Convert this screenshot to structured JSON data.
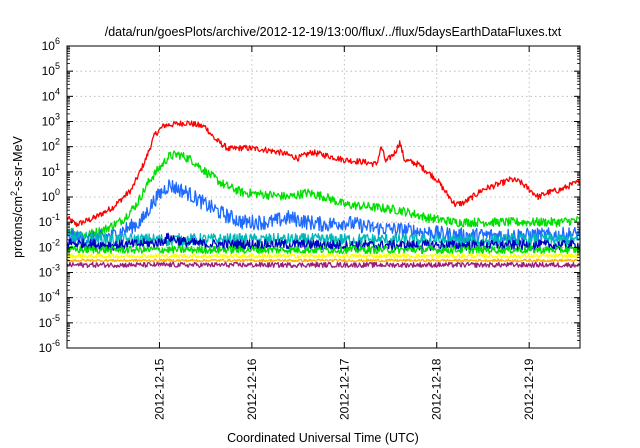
{
  "chart_data": {
    "type": "line",
    "title": "/data/run/goesPlots/archive/2012-12-19/13:00/flux/../flux/5daysEarthDataFluxes.txt",
    "xlabel": "Coordinated Universal Time (UTC)",
    "ylabel_main": "protons/cm",
    "ylabel_sup": "2",
    "ylabel_tail": "-s-sr-MeV",
    "y_scale": "log",
    "ylim_exp": [
      -6,
      6
    ],
    "y_tick_exponents": [
      -6,
      -5,
      -4,
      -3,
      -2,
      -1,
      0,
      1,
      2,
      3,
      4,
      5,
      6
    ],
    "xlim_days": [
      14.0,
      19.55
    ],
    "x_ticks": [
      {
        "label": "2012-12-15",
        "day": 15
      },
      {
        "label": "2012-12-16",
        "day": 16
      },
      {
        "label": "2012-12-17",
        "day": 17
      },
      {
        "label": "2012-12-18",
        "day": 18
      },
      {
        "label": "2012-12-19",
        "day": 19
      }
    ],
    "grid": true,
    "series": [
      {
        "color": "#ff0000",
        "noise": 0.12,
        "points": [
          [
            14.0,
            0.15
          ],
          [
            14.1,
            0.08
          ],
          [
            14.3,
            0.15
          ],
          [
            14.5,
            0.4
          ],
          [
            14.7,
            2
          ],
          [
            14.85,
            30
          ],
          [
            14.95,
            300
          ],
          [
            15.05,
            700
          ],
          [
            15.3,
            900
          ],
          [
            15.5,
            600
          ],
          [
            15.6,
            200
          ],
          [
            15.75,
            80
          ],
          [
            15.9,
            90
          ],
          [
            16.1,
            80
          ],
          [
            16.3,
            60
          ],
          [
            16.5,
            35
          ],
          [
            16.65,
            60
          ],
          [
            16.8,
            45
          ],
          [
            17.0,
            30
          ],
          [
            17.2,
            25
          ],
          [
            17.35,
            20
          ],
          [
            17.4,
            100
          ],
          [
            17.45,
            25
          ],
          [
            17.55,
            60
          ],
          [
            17.6,
            150
          ],
          [
            17.65,
            30
          ],
          [
            17.8,
            20
          ],
          [
            17.9,
            10
          ],
          [
            18.0,
            5
          ],
          [
            18.1,
            1.5
          ],
          [
            18.2,
            0.5
          ],
          [
            18.3,
            0.6
          ],
          [
            18.5,
            2
          ],
          [
            18.7,
            3.5
          ],
          [
            18.8,
            5
          ],
          [
            18.9,
            4
          ],
          [
            19.0,
            2
          ],
          [
            19.1,
            1
          ],
          [
            19.2,
            1.5
          ],
          [
            19.35,
            2
          ],
          [
            19.45,
            3
          ],
          [
            19.55,
            4
          ]
        ]
      },
      {
        "color": "#00e000",
        "noise": 0.18,
        "points": [
          [
            14.0,
            0.05
          ],
          [
            14.2,
            0.03
          ],
          [
            14.4,
            0.05
          ],
          [
            14.6,
            0.12
          ],
          [
            14.75,
            0.5
          ],
          [
            14.9,
            5
          ],
          [
            15.1,
            40
          ],
          [
            15.2,
            50
          ],
          [
            15.35,
            30
          ],
          [
            15.5,
            10
          ],
          [
            15.7,
            3
          ],
          [
            15.9,
            1.5
          ],
          [
            16.2,
            1.2
          ],
          [
            16.4,
            1
          ],
          [
            16.6,
            1.5
          ],
          [
            16.8,
            1
          ],
          [
            17.0,
            0.5
          ],
          [
            17.3,
            0.4
          ],
          [
            17.6,
            0.3
          ],
          [
            17.9,
            0.15
          ],
          [
            18.2,
            0.1
          ],
          [
            18.6,
            0.1
          ],
          [
            19.0,
            0.1
          ],
          [
            19.3,
            0.1
          ],
          [
            19.55,
            0.12
          ]
        ]
      },
      {
        "color": "#1f6bff",
        "noise": 0.3,
        "points": [
          [
            14.0,
            0.03
          ],
          [
            14.2,
            0.02
          ],
          [
            14.5,
            0.03
          ],
          [
            14.8,
            0.1
          ],
          [
            14.95,
            0.8
          ],
          [
            15.1,
            3
          ],
          [
            15.3,
            1.5
          ],
          [
            15.5,
            0.5
          ],
          [
            15.7,
            0.2
          ],
          [
            15.9,
            0.1
          ],
          [
            16.2,
            0.1
          ],
          [
            16.4,
            0.15
          ],
          [
            16.6,
            0.1
          ],
          [
            16.8,
            0.08
          ],
          [
            17.0,
            0.1
          ],
          [
            17.3,
            0.06
          ],
          [
            17.6,
            0.05
          ],
          [
            17.9,
            0.04
          ],
          [
            18.2,
            0.03
          ],
          [
            18.6,
            0.03
          ],
          [
            19.0,
            0.03
          ],
          [
            19.3,
            0.03
          ],
          [
            19.55,
            0.035
          ]
        ]
      },
      {
        "color": "#00b8b8",
        "noise": 0.25,
        "points": [
          [
            14.0,
            0.025
          ],
          [
            14.5,
            0.02
          ],
          [
            15.0,
            0.02
          ],
          [
            15.5,
            0.02
          ],
          [
            16.0,
            0.02
          ],
          [
            16.5,
            0.02
          ],
          [
            17.0,
            0.02
          ],
          [
            17.5,
            0.02
          ],
          [
            18.0,
            0.018
          ],
          [
            18.5,
            0.018
          ],
          [
            19.0,
            0.02
          ],
          [
            19.55,
            0.02
          ]
        ]
      },
      {
        "color": "#0000c0",
        "noise": 0.2,
        "points": [
          [
            14.0,
            0.015
          ],
          [
            14.5,
            0.012
          ],
          [
            15.0,
            0.015
          ],
          [
            15.1,
            0.025
          ],
          [
            15.3,
            0.015
          ],
          [
            15.6,
            0.013
          ],
          [
            16.0,
            0.013
          ],
          [
            16.5,
            0.013
          ],
          [
            17.0,
            0.012
          ],
          [
            17.5,
            0.012
          ],
          [
            18.0,
            0.012
          ],
          [
            18.5,
            0.012
          ],
          [
            19.0,
            0.012
          ],
          [
            19.55,
            0.012
          ]
        ]
      },
      {
        "color": "#00e000",
        "noise": 0.15,
        "points": [
          [
            14.0,
            0.008
          ],
          [
            15.0,
            0.008
          ],
          [
            16.0,
            0.008
          ],
          [
            17.0,
            0.008
          ],
          [
            18.0,
            0.008
          ],
          [
            19.0,
            0.008
          ],
          [
            19.55,
            0.008
          ]
        ]
      },
      {
        "color": "#ffff00",
        "noise": 0.08,
        "points": [
          [
            14.0,
            0.0045
          ],
          [
            15.0,
            0.0045
          ],
          [
            16.0,
            0.0045
          ],
          [
            17.0,
            0.0045
          ],
          [
            18.0,
            0.0045
          ],
          [
            19.0,
            0.0045
          ],
          [
            19.55,
            0.0045
          ]
        ]
      },
      {
        "color": "#ffb000",
        "noise": 0.05,
        "points": [
          [
            14.0,
            0.003
          ],
          [
            15.0,
            0.003
          ],
          [
            16.0,
            0.003
          ],
          [
            17.0,
            0.003
          ],
          [
            18.0,
            0.003
          ],
          [
            19.0,
            0.003
          ],
          [
            19.55,
            0.003
          ]
        ]
      },
      {
        "color": "#9b1f7a",
        "noise": 0.1,
        "points": [
          [
            14.0,
            0.002
          ],
          [
            15.0,
            0.002
          ],
          [
            16.0,
            0.002
          ],
          [
            17.0,
            0.002
          ],
          [
            18.0,
            0.002
          ],
          [
            19.0,
            0.002
          ],
          [
            19.55,
            0.002
          ]
        ]
      }
    ]
  }
}
